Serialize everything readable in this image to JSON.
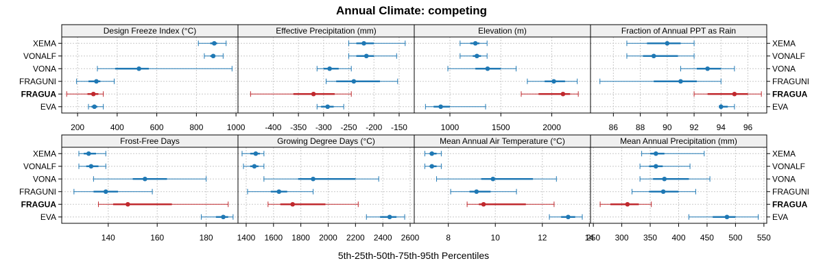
{
  "title": "Annual Climate: competing",
  "xlabel": "5th-25th-50th-75th-95th Percentiles",
  "sites": [
    "XEMA",
    "VONALF",
    "VONA",
    "FRAGUNI",
    "FRAGUA",
    "EVA"
  ],
  "highlight_site": "FRAGUA",
  "colors": {
    "normal": "#1f78b4",
    "highlight": "#c0282d",
    "strip": "#f0f0f0",
    "grid": "#c8c8c8"
  },
  "chart_data": [
    {
      "type": "percentile-dot",
      "title": "Design Freeze Index (°C)",
      "xlim": [
        120,
        1010
      ],
      "ticks": [
        200,
        400,
        600,
        800,
        1000
      ],
      "series": [
        {
          "site": "XEMA",
          "p5": 810,
          "p25": 870,
          "p50": 890,
          "p75": 905,
          "p95": 950
        },
        {
          "site": "VONALF",
          "p5": 840,
          "p25": 870,
          "p50": 885,
          "p75": 895,
          "p95": 935
        },
        {
          "site": "VONA",
          "p5": 300,
          "p25": 390,
          "p50": 510,
          "p75": 560,
          "p95": 980
        },
        {
          "site": "FRAGUNI",
          "p5": 195,
          "p25": 255,
          "p50": 295,
          "p75": 315,
          "p95": 385
        },
        {
          "site": "FRAGUA",
          "p5": 145,
          "p25": 250,
          "p50": 280,
          "p75": 305,
          "p95": 330
        },
        {
          "site": "EVA",
          "p5": 255,
          "p25": 270,
          "p50": 285,
          "p75": 300,
          "p95": 330
        }
      ]
    },
    {
      "type": "percentile-dot",
      "title": "Effective Precipitation (mm)",
      "xlim": [
        -470,
        -120
      ],
      "ticks": [
        -400,
        -350,
        -300,
        -250,
        -200,
        -150
      ],
      "series": [
        {
          "site": "XEMA",
          "p5": -250,
          "p25": -235,
          "p50": -220,
          "p75": -200,
          "p95": -138
        },
        {
          "site": "VONALF",
          "p5": -250,
          "p25": -235,
          "p50": -215,
          "p75": -200,
          "p95": -155
        },
        {
          "site": "VONA",
          "p5": -313,
          "p25": -300,
          "p50": -288,
          "p75": -270,
          "p95": -245
        },
        {
          "site": "FRAGUNI",
          "p5": -295,
          "p25": -275,
          "p50": -240,
          "p75": -188,
          "p95": -153
        },
        {
          "site": "FRAGUA",
          "p5": -445,
          "p25": -360,
          "p50": -320,
          "p75": -278,
          "p95": -245
        },
        {
          "site": "EVA",
          "p5": -313,
          "p25": -305,
          "p50": -292,
          "p75": -280,
          "p95": -260
        }
      ]
    },
    {
      "type": "percentile-dot",
      "title": "Elevation (m)",
      "xlim": [
        650,
        2380
      ],
      "ticks": [
        1000,
        1500,
        2000
      ],
      "series": [
        {
          "site": "XEMA",
          "p5": 1100,
          "p25": 1200,
          "p50": 1250,
          "p75": 1290,
          "p95": 1365
        },
        {
          "site": "VONALF",
          "p5": 1100,
          "p25": 1225,
          "p50": 1265,
          "p75": 1305,
          "p95": 1365
        },
        {
          "site": "VONA",
          "p5": 980,
          "p25": 1250,
          "p50": 1370,
          "p75": 1500,
          "p95": 1650
        },
        {
          "site": "FRAGUNI",
          "p5": 1760,
          "p25": 1930,
          "p50": 2020,
          "p75": 2130,
          "p95": 2250
        },
        {
          "site": "FRAGUA",
          "p5": 1700,
          "p25": 1870,
          "p50": 2110,
          "p75": 2180,
          "p95": 2260
        },
        {
          "site": "EVA",
          "p5": 760,
          "p25": 840,
          "p50": 910,
          "p75": 1000,
          "p95": 1350
        }
      ]
    },
    {
      "type": "percentile-dot",
      "title": "Fraction of Annual PPT as Rain",
      "xlim": [
        84.3,
        97.4
      ],
      "ticks": [
        86,
        88,
        90,
        92,
        94,
        96
      ],
      "series": [
        {
          "site": "XEMA",
          "p5": 87,
          "p25": 88.5,
          "p50": 90,
          "p75": 91,
          "p95": 92
        },
        {
          "site": "VONALF",
          "p5": 87,
          "p25": 88.2,
          "p50": 89,
          "p75": 90.8,
          "p95": 92
        },
        {
          "site": "VONA",
          "p5": 91,
          "p25": 92.2,
          "p50": 93,
          "p75": 94,
          "p95": 95
        },
        {
          "site": "FRAGUNI",
          "p5": 85,
          "p25": 89,
          "p50": 91,
          "p75": 92.2,
          "p95": 94
        },
        {
          "site": "FRAGUA",
          "p5": 92,
          "p25": 93,
          "p50": 95,
          "p75": 96,
          "p95": 97
        },
        {
          "site": "EVA",
          "p5": 94,
          "p25": 94,
          "p50": 94,
          "p75": 94.5,
          "p95": 95
        }
      ]
    },
    {
      "type": "percentile-dot",
      "title": "Frost-Free Days",
      "xlim": [
        121,
        193
      ],
      "ticks": [
        140,
        160,
        180
      ],
      "series": [
        {
          "site": "XEMA",
          "p5": 128,
          "p25": 130,
          "p50": 132,
          "p75": 135,
          "p95": 139
        },
        {
          "site": "VONALF",
          "p5": 128,
          "p25": 131,
          "p50": 133,
          "p75": 136,
          "p95": 139
        },
        {
          "site": "VONA",
          "p5": 134,
          "p25": 150,
          "p50": 155,
          "p75": 164,
          "p95": 180
        },
        {
          "site": "FRAGUNI",
          "p5": 126,
          "p25": 134,
          "p50": 139,
          "p75": 144,
          "p95": 158
        },
        {
          "site": "FRAGUA",
          "p5": 136,
          "p25": 142,
          "p50": 148,
          "p75": 166,
          "p95": 189
        },
        {
          "site": "EVA",
          "p5": 178,
          "p25": 184,
          "p50": 187,
          "p75": 189,
          "p95": 191
        }
      ]
    },
    {
      "type": "percentile-dot",
      "title": "Growing Degree Days (°C)",
      "xlim": [
        1340,
        2630
      ],
      "ticks": [
        1400,
        1600,
        1800,
        2000,
        2200,
        2400,
        2600
      ],
      "series": [
        {
          "site": "XEMA",
          "p5": 1370,
          "p25": 1430,
          "p50": 1470,
          "p75": 1500,
          "p95": 1530
        },
        {
          "site": "VONALF",
          "p5": 1380,
          "p25": 1430,
          "p50": 1460,
          "p75": 1490,
          "p95": 1530
        },
        {
          "site": "VONA",
          "p5": 1530,
          "p25": 1780,
          "p50": 1890,
          "p75": 2200,
          "p95": 2370
        },
        {
          "site": "FRAGUNI",
          "p5": 1410,
          "p25": 1580,
          "p50": 1640,
          "p75": 1700,
          "p95": 1890
        },
        {
          "site": "FRAGUA",
          "p5": 1560,
          "p25": 1650,
          "p50": 1740,
          "p75": 1980,
          "p95": 2220
        },
        {
          "site": "EVA",
          "p5": 2280,
          "p25": 2380,
          "p50": 2450,
          "p75": 2500,
          "p95": 2560
        }
      ]
    },
    {
      "type": "percentile-dot",
      "title": "Mean Annual Air Temperature (°C)",
      "xlim": [
        6.55,
        14.05
      ],
      "ticks": [
        8,
        10,
        12,
        14
      ],
      "series": [
        {
          "site": "XEMA",
          "p5": 7.0,
          "p25": 7.2,
          "p50": 7.3,
          "p75": 7.5,
          "p95": 7.7
        },
        {
          "site": "VONALF",
          "p5": 7.0,
          "p25": 7.2,
          "p50": 7.3,
          "p75": 7.5,
          "p95": 7.7
        },
        {
          "site": "VONA",
          "p5": 7.5,
          "p25": 9.4,
          "p50": 9.9,
          "p75": 11.6,
          "p95": 12.6
        },
        {
          "site": "FRAGUNI",
          "p5": 8.1,
          "p25": 8.9,
          "p50": 9.2,
          "p75": 9.8,
          "p95": 10.9
        },
        {
          "site": "FRAGUA",
          "p5": 8.8,
          "p25": 9.3,
          "p50": 9.5,
          "p75": 11.3,
          "p95": 12.5
        },
        {
          "site": "EVA",
          "p5": 12.3,
          "p25": 12.8,
          "p50": 13.1,
          "p75": 13.4,
          "p95": 13.7
        }
      ]
    },
    {
      "type": "percentile-dot",
      "title": "Mean Annual Precipitation (mm)",
      "xlim": [
        245,
        555
      ],
      "ticks": [
        250,
        300,
        350,
        400,
        450,
        500,
        550
      ],
      "series": [
        {
          "site": "XEMA",
          "p5": 335,
          "p25": 350,
          "p50": 360,
          "p75": 375,
          "p95": 445
        },
        {
          "site": "VONALF",
          "p5": 332,
          "p25": 348,
          "p50": 360,
          "p75": 372,
          "p95": 420
        },
        {
          "site": "VONA",
          "p5": 332,
          "p25": 355,
          "p50": 375,
          "p75": 418,
          "p95": 455
        },
        {
          "site": "FRAGUNI",
          "p5": 318,
          "p25": 348,
          "p50": 373,
          "p75": 400,
          "p95": 430
        },
        {
          "site": "FRAGUA",
          "p5": 262,
          "p25": 280,
          "p50": 310,
          "p75": 330,
          "p95": 352
        },
        {
          "site": "EVA",
          "p5": 418,
          "p25": 460,
          "p50": 485,
          "p75": 500,
          "p95": 540
        }
      ]
    }
  ]
}
